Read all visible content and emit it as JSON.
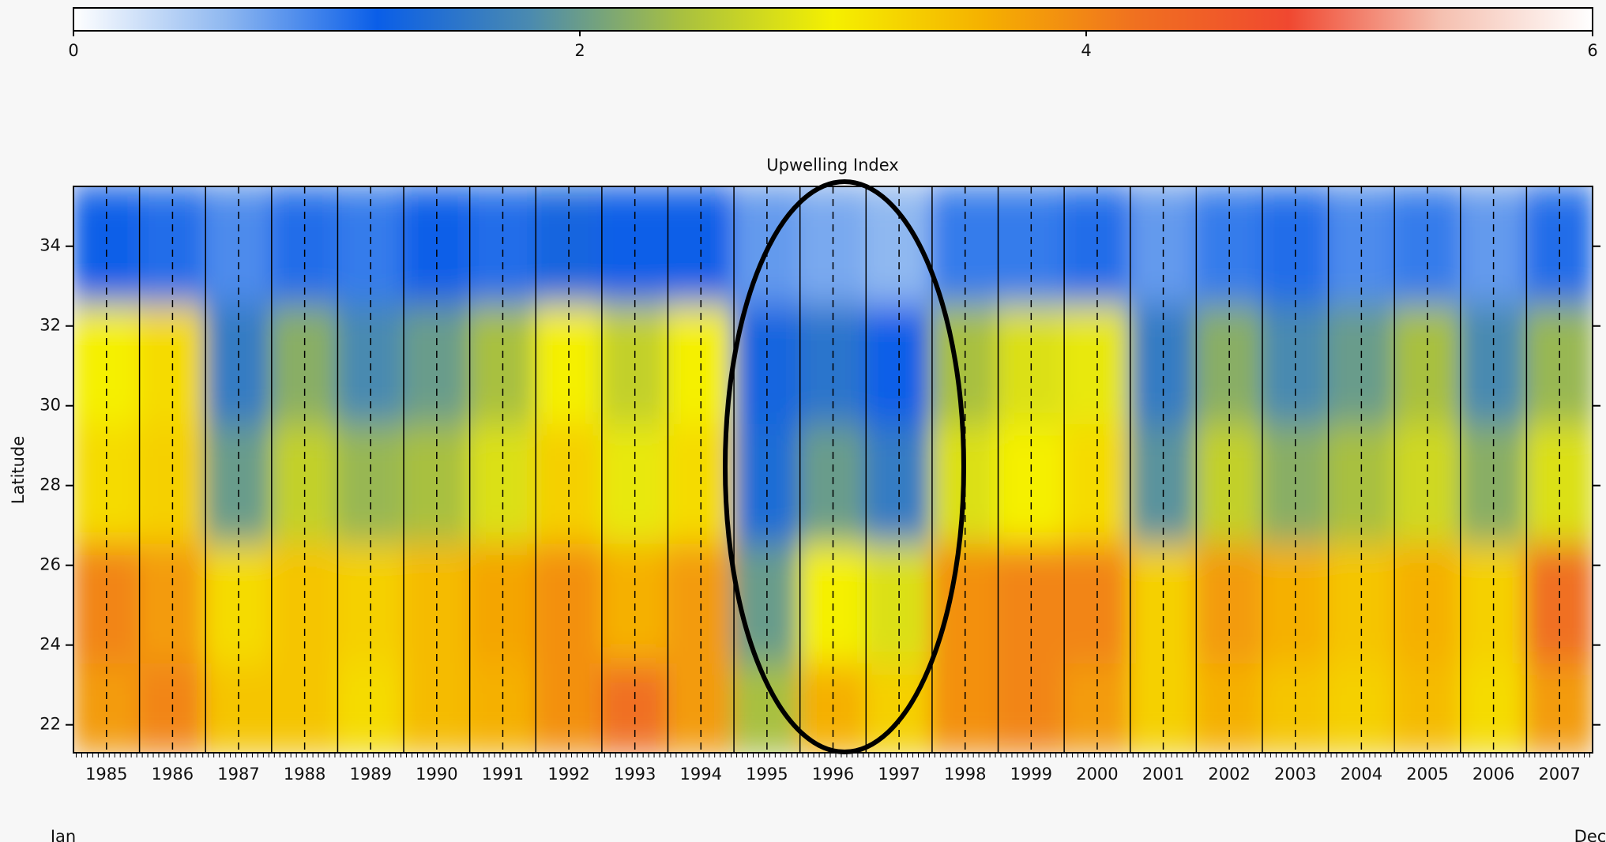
{
  "chart_data": {
    "type": "heatmap",
    "title": "Upwelling Index",
    "y_label": "Latitude",
    "categories": [
      "1985",
      "1986",
      "1987",
      "1988",
      "1989",
      "1990",
      "1991",
      "1992",
      "1993",
      "1994",
      "1995",
      "1996",
      "1997",
      "1998",
      "1999",
      "2000",
      "2001",
      "2002",
      "2003",
      "2004",
      "2005",
      "2006",
      "2007"
    ],
    "x_range_labels": [
      "Jan",
      "Dec"
    ],
    "lat": [
      34,
      31,
      28,
      25,
      22
    ],
    "z": [
      [
        1.2,
        1.1,
        0.9,
        1.1,
        1.0,
        1.2,
        1.1,
        1.3,
        1.2,
        1.2,
        0.8,
        0.7,
        0.6,
        1.0,
        1.0,
        1.1,
        0.8,
        1.0,
        1.1,
        0.9,
        1.0,
        0.8,
        1.1
      ],
      [
        3.0,
        3.2,
        1.6,
        2.2,
        1.8,
        2.0,
        2.4,
        3.0,
        2.6,
        3.0,
        1.3,
        1.5,
        1.2,
        2.4,
        2.8,
        2.9,
        1.6,
        2.2,
        1.8,
        2.0,
        2.4,
        1.8,
        2.3
      ],
      [
        3.2,
        3.3,
        2.0,
        2.6,
        2.3,
        2.4,
        2.8,
        3.3,
        2.9,
        3.2,
        1.4,
        2.0,
        1.6,
        2.8,
        3.0,
        3.2,
        1.9,
        2.6,
        2.2,
        2.4,
        2.7,
        2.2,
        2.8
      ],
      [
        4.0,
        3.8,
        3.2,
        3.4,
        3.3,
        3.5,
        3.7,
        3.9,
        3.6,
        3.8,
        2.0,
        3.0,
        2.8,
        3.9,
        4.0,
        4.0,
        3.3,
        3.8,
        3.6,
        3.4,
        3.6,
        3.3,
        4.2
      ],
      [
        3.8,
        4.0,
        3.4,
        3.4,
        3.2,
        3.5,
        3.6,
        3.9,
        4.2,
        3.8,
        2.4,
        3.6,
        3.3,
        3.9,
        4.0,
        3.8,
        3.3,
        3.6,
        3.4,
        3.3,
        3.5,
        3.2,
        3.8
      ]
    ],
    "ylim": [
      21.3,
      35.5
    ],
    "yticks": [
      22,
      24,
      26,
      28,
      30,
      32,
      34
    ],
    "colorbar": {
      "lim": [
        0,
        6
      ],
      "ticks": [
        0,
        2,
        4,
        6
      ]
    },
    "colormap": [
      "#ffffff",
      "#8fb8f0",
      "#0a5ee8",
      "#4a8ab0",
      "#a8c040",
      "#f5f000",
      "#f5b000",
      "#f07020",
      "#f04830",
      "#f5c0b0",
      "#ffffff"
    ]
  }
}
